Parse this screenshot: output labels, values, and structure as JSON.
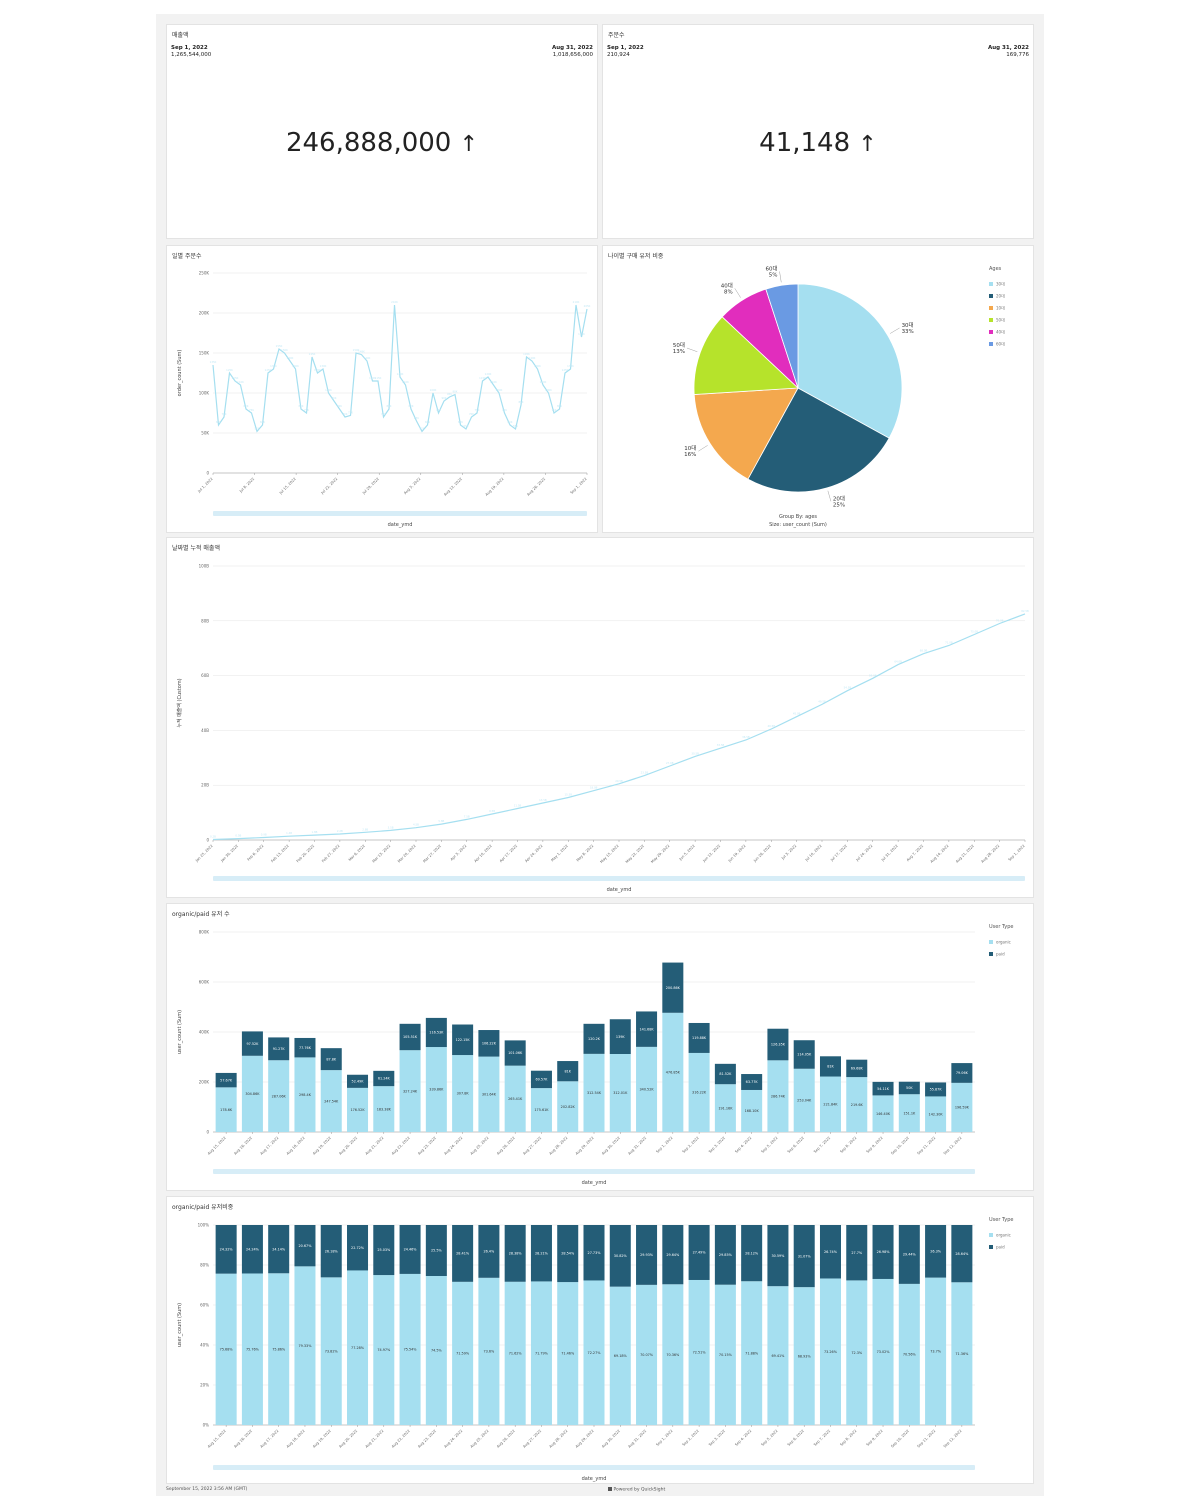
{
  "kpi_sales": {
    "title": "매출액",
    "start_label": "Sep 1, 2022",
    "start_value": "1,265,544,000",
    "end_label": "Aug 31, 2022",
    "end_value": "1,018,656,000",
    "big_value": "246,888,000",
    "arrow": "↑"
  },
  "kpi_orders": {
    "title": "주문수",
    "start_label": "Sep 1, 2022",
    "start_value": "210,924",
    "end_label": "Aug 31, 2022",
    "end_value": "169,776",
    "big_value": "41,148",
    "arrow": "↑"
  },
  "footer": {
    "timestamp": "September 15, 2022 3:56 AM (GMT)",
    "powered": "Powered by QuickSight"
  },
  "colors": {
    "light": "#a5dff0",
    "dark": "#245d77",
    "scroll": "#d7edf7"
  },
  "chart_data": [
    {
      "id": "daily_orders",
      "type": "line",
      "title": "일별 주문수",
      "xlabel": "date_ymd",
      "ylabel": "order_count (Sum)",
      "ylim": [
        0,
        250000
      ],
      "yticks": [
        "0",
        "50K",
        "100K",
        "150K",
        "200K",
        "250K"
      ],
      "xticks": [
        "Jul 1, 2022",
        "Jul 8, 2022",
        "Jul 15, 2022",
        "Jul 22, 2022",
        "Jul 29, 2022",
        "Aug 5, 2022",
        "Aug 12, 2022",
        "Aug 19, 2022",
        "Aug 26, 2022",
        "Sep 1, 2022"
      ],
      "values": [
        135000,
        60000,
        70000,
        125000,
        115000,
        110000,
        80000,
        75000,
        52000,
        60000,
        125000,
        130000,
        155000,
        150000,
        140000,
        130000,
        80000,
        75000,
        145000,
        125000,
        130000,
        100000,
        90000,
        80000,
        70000,
        72000,
        150000,
        148000,
        140000,
        115000,
        115000,
        70000,
        80000,
        210000,
        120000,
        110000,
        80000,
        65000,
        52000,
        60000,
        100000,
        75000,
        90000,
        95000,
        98000,
        60000,
        55000,
        70000,
        75000,
        115000,
        120000,
        110000,
        100000,
        75000,
        60000,
        55000,
        85000,
        145000,
        140000,
        130000,
        110000,
        100000,
        75000,
        80000,
        125000,
        130000,
        210000,
        170000,
        205000
      ]
    },
    {
      "id": "age_ratio",
      "type": "pie",
      "title": "나이별 구매 유저 비중",
      "legend_title": "Ages",
      "legend_position": "right",
      "caption_group": "Group By: ages",
      "caption_size": "Size: user_count (Sum)",
      "slices": [
        {
          "label": "30대",
          "pct": "33%",
          "value": 33,
          "color": "#a5dff0"
        },
        {
          "label": "20대",
          "pct": "25%",
          "value": 25,
          "color": "#245d77"
        },
        {
          "label": "10대",
          "pct": "16%",
          "value": 16,
          "color": "#f4a84e"
        },
        {
          "label": "50대",
          "pct": "13%",
          "value": 13,
          "color": "#b6e32b"
        },
        {
          "label": "40대",
          "pct": "8%",
          "value": 8,
          "color": "#e12dbd"
        },
        {
          "label": "60대",
          "pct": "5%",
          "value": 5,
          "color": "#6a9ae3"
        }
      ]
    },
    {
      "id": "cumulative_sales",
      "type": "line",
      "title": "날짜별 누적 매출액",
      "xlabel": "date_ymd",
      "ylabel": "누적 매출액 (Custom)",
      "ylim": [
        0,
        100
      ],
      "yticks": [
        "0",
        "20B",
        "40B",
        "60B",
        "80B",
        "100B"
      ],
      "xticks": [
        "Jan 25, 2022",
        "Jan 30, 2022",
        "Feb 6, 2022",
        "Feb 13, 2022",
        "Feb 20, 2022",
        "Feb 27, 2022",
        "Mar 6, 2022",
        "Mar 13, 2022",
        "Mar 20, 2022",
        "Mar 27, 2022",
        "Apr 3, 2022",
        "Apr 10, 2022",
        "Apr 17, 2022",
        "Apr 24, 2022",
        "May 1, 2022",
        "May 8, 2022",
        "May 15, 2022",
        "May 22, 2022",
        "May 29, 2022",
        "Jun 5, 2022",
        "Jun 12, 2022",
        "Jun 19, 2022",
        "Jun 26, 2022",
        "Jul 3, 2022",
        "Jul 10, 2022",
        "Jul 17, 2022",
        "Jul 24, 2022",
        "Jul 31, 2022",
        "Aug 7, 2022",
        "Aug 14, 2022",
        "Aug 21, 2022",
        "Aug 28, 2022",
        "Sep 1, 2022"
      ],
      "values": [
        0.2,
        0.5,
        0.9,
        1.4,
        1.8,
        2.2,
        2.8,
        3.5,
        4.5,
        5.8,
        7.5,
        9.5,
        11.5,
        13.5,
        15.5,
        18,
        20.5,
        23.5,
        27,
        30.5,
        33.5,
        36.5,
        40.5,
        45,
        49.5,
        54.5,
        59,
        64,
        68,
        71,
        75,
        79,
        82.5
      ]
    },
    {
      "id": "user_counts",
      "type": "bar",
      "stacked": true,
      "title": "organic/paid 유저 수",
      "xlabel": "date_ymd",
      "ylabel": "user_count (Sum)",
      "ylim": [
        0,
        800000
      ],
      "yticks": [
        "0",
        "200K",
        "400K",
        "600K",
        "800K"
      ],
      "legend_title": "User Type",
      "legend_position": "right",
      "categories": [
        "Aug 15, 2022",
        "Aug 16, 2022",
        "Aug 17, 2022",
        "Aug 18, 2022",
        "Aug 19, 2022",
        "Aug 20, 2022",
        "Aug 21, 2022",
        "Aug 22, 2022",
        "Aug 23, 2022",
        "Aug 24, 2022",
        "Aug 25, 2022",
        "Aug 26, 2022",
        "Aug 27, 2022",
        "Aug 28, 2022",
        "Aug 29, 2022",
        "Aug 30, 2022",
        "Aug 31, 2022",
        "Sep 1, 2022",
        "Sep 2, 2022",
        "Sep 3, 2022",
        "Sep 4, 2022",
        "Sep 5, 2022",
        "Sep 6, 2022",
        "Sep 7, 2022",
        "Sep 8, 2022",
        "Sep 9, 2022",
        "Sep 10, 2022",
        "Sep 11, 2022",
        "Sep 12, 2022"
      ],
      "series": [
        {
          "name": "organic",
          "color": "#a5dff0",
          "values": [
            178600,
            304860,
            287060,
            298400,
            247540,
            176520,
            183380,
            327240,
            339860,
            307800,
            301640,
            265410,
            175610,
            202820,
            312540,
            312010,
            340520,
            476850,
            316220,
            191160,
            168100,
            286740,
            253040,
            221840,
            219600,
            146400,
            151100,
            142300,
            196590
          ],
          "labels": [
            "178.6K",
            "304.86K",
            "287.06K",
            "298.4K",
            "247.54K",
            "176.52K",
            "183.38K",
            "327.24K",
            "339.86K",
            "307.8K",
            "301.64K",
            "265.41K",
            "175.61K",
            "202.82K",
            "312.54K",
            "312.01K",
            "340.52K",
            "476.85K",
            "316.22K",
            "191.16K",
            "168.10K",
            "286.74K",
            "253.04K",
            "221.84K",
            "219.6K",
            "146.40K",
            "151.1K",
            "142.30K",
            "196.59K"
          ]
        },
        {
          "name": "paid",
          "color": "#245d77",
          "values": [
            57670,
            97520,
            91270,
            77760,
            87800,
            52490,
            61240,
            105510,
            116530,
            122150,
            106220,
            101060,
            69570,
            81000,
            120200,
            139000,
            141680,
            200860,
            119880,
            81520,
            63770,
            126350,
            114050,
            81000,
            69680,
            54110,
            50000,
            55870,
            79060
          ],
          "labels": [
            "57.67K",
            "97.52K",
            "91.27K",
            "77.76K",
            "87.8K",
            "52.49K",
            "61.24K",
            "105.51K",
            "116.53K",
            "122.15K",
            "106.22K",
            "101.06K",
            "69.57K",
            "81K",
            "120.2K",
            "139K",
            "141.68K",
            "200.86K",
            "119.88K",
            "81.52K",
            "63.77K",
            "126.35K",
            "114.05K",
            "81K",
            "69.68K",
            "54.11K",
            "50K",
            "55.87K",
            "79.06K"
          ]
        }
      ]
    },
    {
      "id": "user_ratio",
      "type": "bar",
      "stacked": true,
      "title": "organic/paid 유저비중",
      "xlabel": "date_ymd",
      "ylabel": "user_count (Sum)",
      "ylim": [
        0,
        100
      ],
      "yticks": [
        "0%",
        "20%",
        "40%",
        "60%",
        "80%",
        "100%"
      ],
      "legend_title": "User Type",
      "legend_position": "right",
      "categories": [
        "Aug 15, 2022",
        "Aug 16, 2022",
        "Aug 17, 2022",
        "Aug 18, 2022",
        "Aug 19, 2022",
        "Aug 20, 2022",
        "Aug 21, 2022",
        "Aug 22, 2022",
        "Aug 23, 2022",
        "Aug 24, 2022",
        "Aug 25, 2022",
        "Aug 26, 2022",
        "Aug 27, 2022",
        "Aug 28, 2022",
        "Aug 29, 2022",
        "Aug 30, 2022",
        "Aug 31, 2022",
        "Sep 1, 2022",
        "Sep 2, 2022",
        "Sep 3, 2022",
        "Sep 4, 2022",
        "Sep 5, 2022",
        "Sep 6, 2022",
        "Sep 7, 2022",
        "Sep 8, 2022",
        "Sep 9, 2022",
        "Sep 10, 2022",
        "Sep 11, 2022",
        "Sep 12, 2022"
      ],
      "series": [
        {
          "name": "organic",
          "color": "#a5dff0",
          "values": [
            75.68,
            75.76,
            75.86,
            79.33,
            73.82,
            77.28,
            74.97,
            75.54,
            74.5,
            71.59,
            73.6,
            71.62,
            71.79,
            71.46,
            72.27,
            69.18,
            70.07,
            70.36,
            72.51,
            70.15,
            71.88,
            69.41,
            68.93,
            73.26,
            72.3,
            73.02,
            70.56,
            73.7,
            71.36
          ],
          "labels": [
            "75.68%",
            "75.76%",
            "75.86%",
            "79.33%",
            "73.82%",
            "77.28%",
            "74.97%",
            "75.54%",
            "74.5%",
            "71.59%",
            "73.6%",
            "71.62%",
            "71.79%",
            "71.46%",
            "72.27%",
            "69.18%",
            "70.07%",
            "70.36%",
            "72.51%",
            "70.15%",
            "71.88%",
            "69.41%",
            "68.93%",
            "73.26%",
            "72.3%",
            "73.02%",
            "70.56%",
            "73.7%",
            "71.36%"
          ]
        },
        {
          "name": "paid",
          "color": "#245d77",
          "values": [
            24.32,
            24.24,
            24.14,
            20.67,
            26.18,
            22.72,
            25.03,
            24.46,
            25.5,
            28.41,
            26.4,
            28.38,
            28.21,
            28.54,
            27.73,
            30.82,
            29.93,
            29.64,
            27.49,
            29.85,
            28.12,
            30.59,
            31.07,
            26.74,
            27.7,
            26.98,
            29.44,
            26.3,
            28.64
          ],
          "labels": [
            "24.32%",
            "24.24%",
            "24.14%",
            "20.67%",
            "26.18%",
            "22.72%",
            "25.03%",
            "24.46%",
            "25.5%",
            "28.41%",
            "26.4%",
            "28.38%",
            "28.21%",
            "28.54%",
            "27.73%",
            "30.82%",
            "29.93%",
            "29.64%",
            "27.49%",
            "29.85%",
            "28.12%",
            "30.59%",
            "31.07%",
            "26.74%",
            "27.7%",
            "26.98%",
            "29.44%",
            "26.3%",
            "28.64%"
          ]
        }
      ]
    }
  ]
}
